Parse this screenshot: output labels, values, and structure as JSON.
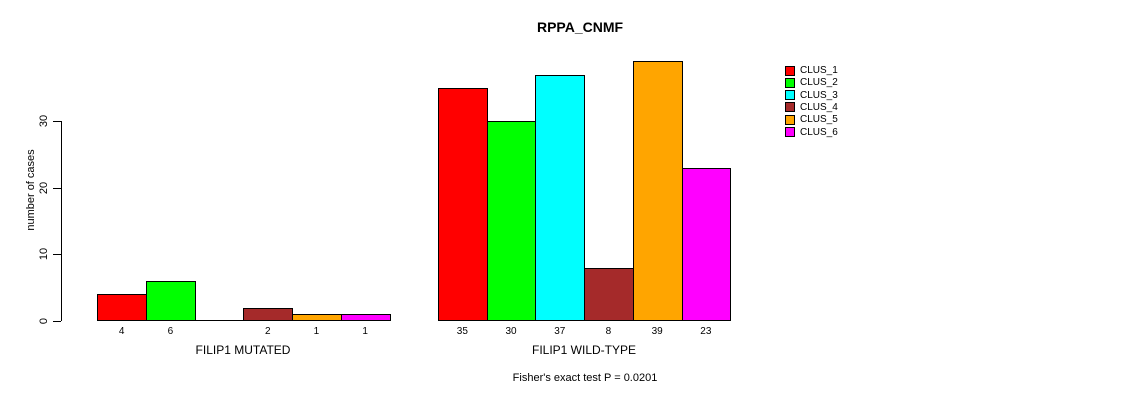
{
  "chart_data": {
    "type": "bar",
    "title": "RPPA_CNMF",
    "ylabel": "number of cases",
    "yticks": [
      0,
      10,
      20,
      30
    ],
    "ylim": [
      0,
      40
    ],
    "grid": false,
    "legend_position": "right-outside",
    "categories": [
      "FILIP1 MUTATED",
      "FILIP1 WILD-TYPE"
    ],
    "series": [
      {
        "name": "CLUS_1",
        "color": "#FF0000",
        "values": [
          4,
          35
        ]
      },
      {
        "name": "CLUS_2",
        "color": "#00FF00",
        "values": [
          6,
          30
        ]
      },
      {
        "name": "CLUS_3",
        "color": "#00FFFF",
        "values": [
          0,
          37
        ]
      },
      {
        "name": "CLUS_4",
        "color": "#A52A2A",
        "values": [
          2,
          8
        ]
      },
      {
        "name": "CLUS_5",
        "color": "#FFA500",
        "values": [
          1,
          39
        ]
      },
      {
        "name": "CLUS_6",
        "color": "#FF00FF",
        "values": [
          1,
          23
        ]
      }
    ],
    "bar_value_labels": [
      [
        "4",
        "6",
        "",
        "2",
        "1",
        "1"
      ],
      [
        "35",
        "30",
        "37",
        "8",
        "39",
        "23"
      ]
    ],
    "annotation": "Fisher's exact test P = 0.0201"
  }
}
